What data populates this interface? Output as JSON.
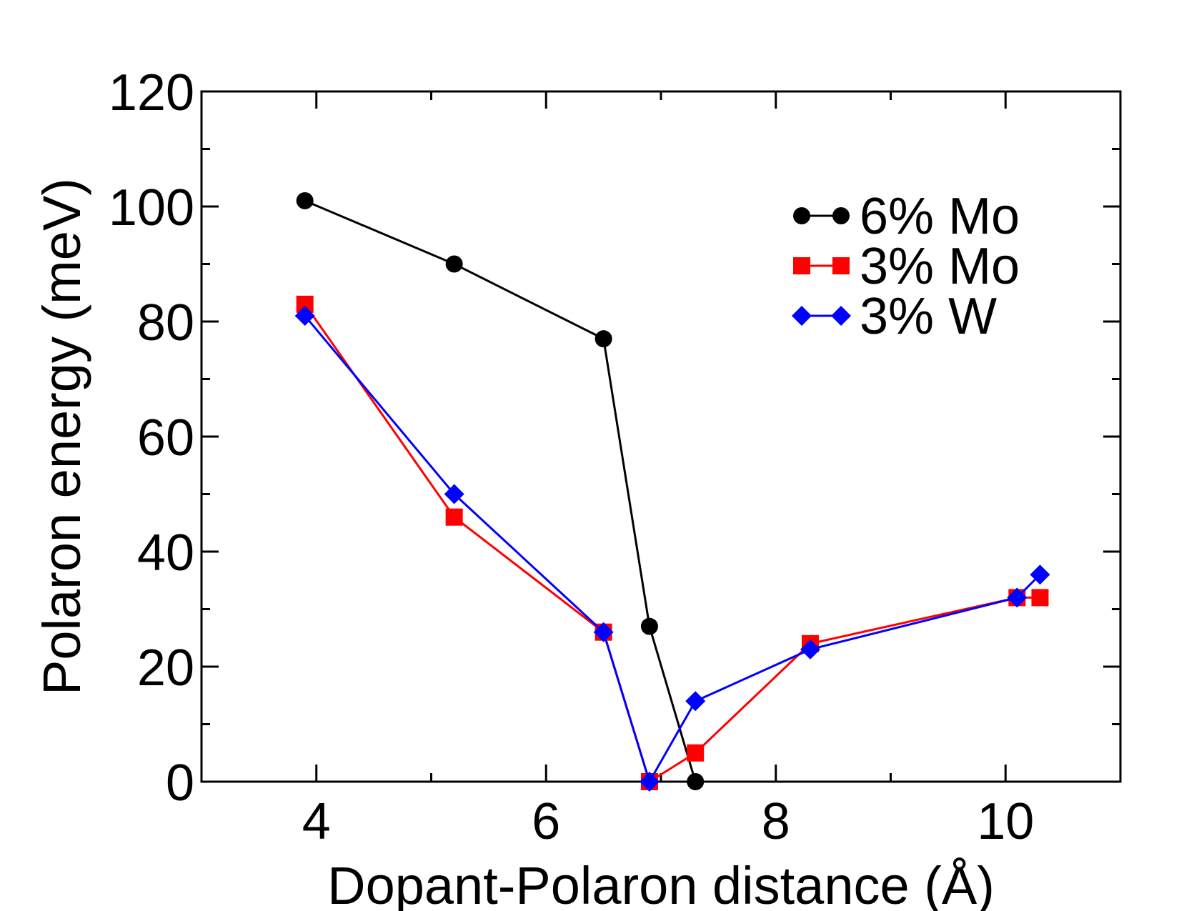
{
  "chart_data": {
    "type": "line",
    "xlabel": "Dopant-Polaron distance (Å)",
    "ylabel": "Polaron energy (meV)",
    "xlim": [
      3,
      11
    ],
    "ylim": [
      0,
      120
    ],
    "x_ticks": [
      4,
      6,
      8,
      10
    ],
    "x_tick_labels": [
      "4",
      "6",
      "8",
      "10"
    ],
    "x_minor_ticks": [
      5,
      7,
      9
    ],
    "y_ticks": [
      0,
      20,
      40,
      60,
      80,
      100,
      120
    ],
    "y_tick_labels": [
      "0",
      "20",
      "40",
      "60",
      "80",
      "100",
      "120"
    ],
    "y_minor_ticks": [
      10,
      30,
      50,
      70,
      90,
      110
    ],
    "grid": false,
    "legend_position": "top-right",
    "series": [
      {
        "name": "6% Mo",
        "color": "#000000",
        "marker": "circle",
        "x": [
          3.9,
          5.2,
          6.5,
          6.9,
          7.3
        ],
        "y": [
          101,
          90,
          77,
          27,
          0
        ]
      },
      {
        "name": "3% Mo",
        "color": "#ff0000",
        "marker": "square",
        "x": [
          3.9,
          5.2,
          6.5,
          6.9,
          7.3,
          8.3,
          10.1,
          10.3
        ],
        "y": [
          83,
          46,
          26,
          0,
          5,
          24,
          32,
          32
        ]
      },
      {
        "name": "3% W",
        "color": "#0000ff",
        "marker": "diamond",
        "x": [
          3.9,
          5.2,
          6.5,
          6.9,
          7.3,
          8.3,
          10.1,
          10.3
        ],
        "y": [
          81,
          50,
          26,
          0,
          14,
          23,
          32,
          36
        ]
      }
    ]
  }
}
